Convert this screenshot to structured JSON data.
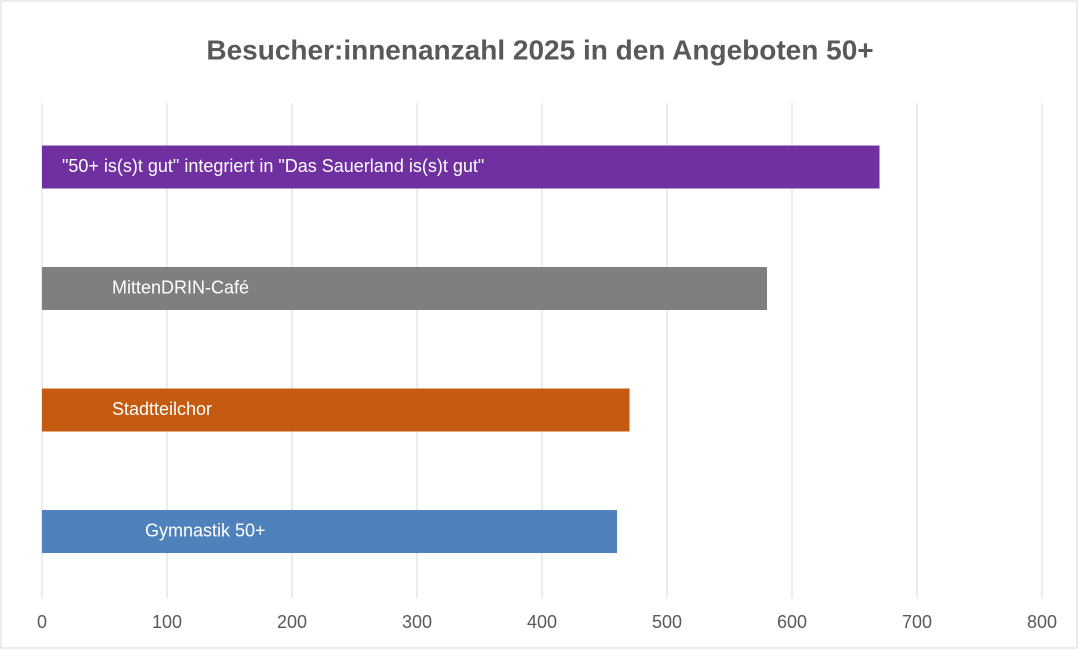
{
  "chart_data": {
    "type": "barh",
    "title": "Besucher:innenanzahl 2025 in den Angeboten 50+",
    "categories": [
      "\"50+ is(s)t gut\" integriert in \"Das Sauerland is(s)t gut\"",
      "MittenDRIN-Café",
      "Stadtteilchor",
      "Gymnastik 50+"
    ],
    "values": [
      670,
      580,
      470,
      460
    ],
    "colors": [
      "#7030a0",
      "#7f7f7f",
      "#c55a11",
      "#4f81bd"
    ],
    "xlim": [
      0,
      800
    ],
    "xticks": [
      0,
      100,
      200,
      300,
      400,
      500,
      600,
      700,
      800
    ],
    "grid": true
  }
}
